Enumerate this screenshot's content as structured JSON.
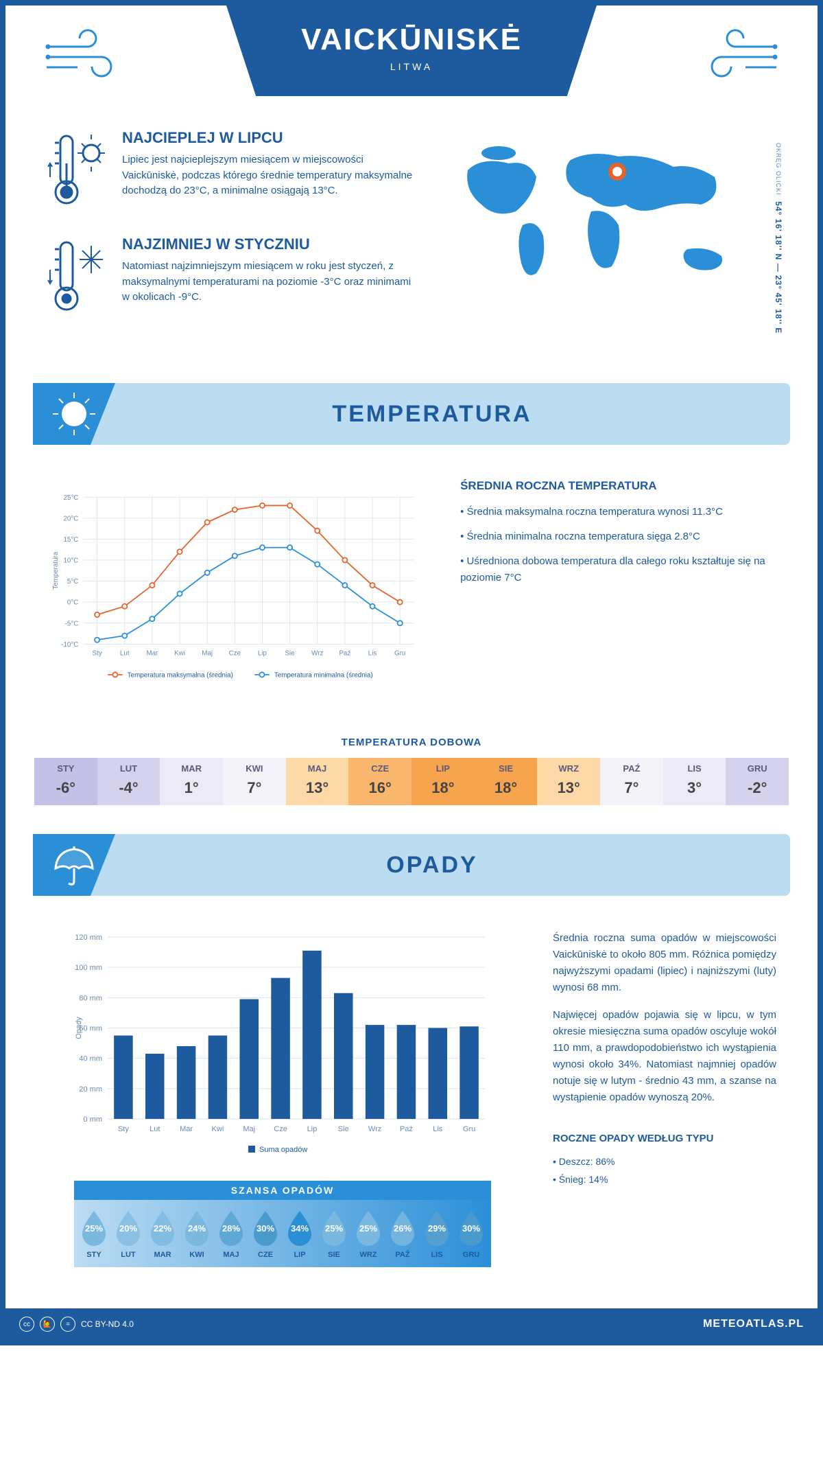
{
  "header": {
    "title": "VAICKŪNISKĖ",
    "subtitle": "LITWA"
  },
  "coords": {
    "main": "54° 16' 18'' N — 23° 45' 18'' E",
    "sub": "OKRĘG OLICKI"
  },
  "facts": {
    "hot": {
      "title": "NAJCIEPLEJ W LIPCU",
      "text": "Lipiec jest najcieplejszym miesiącem w miejscowości Vaickūniskė, podczas którego średnie temperatury maksymalne dochodzą do 23°C, a minimalne osiągają 13°C."
    },
    "cold": {
      "title": "NAJZIMNIEJ W STYCZNIU",
      "text": "Natomiast najzimniejszym miesiącem w roku jest styczeń, z maksymalnymi temperaturami na poziomie -3°C oraz minimami w okolicach -9°C."
    }
  },
  "sections": {
    "temp": "TEMPERATURA",
    "precip": "OPADY"
  },
  "months": [
    "Sty",
    "Lut",
    "Mar",
    "Kwi",
    "Maj",
    "Cze",
    "Lip",
    "Sie",
    "Wrz",
    "Paź",
    "Lis",
    "Gru"
  ],
  "months_upper": [
    "STY",
    "LUT",
    "MAR",
    "KWI",
    "MAJ",
    "CZE",
    "LIP",
    "SIE",
    "WRZ",
    "PAŹ",
    "LIS",
    "GRU"
  ],
  "temp_chart": {
    "type": "line",
    "ylim": [
      -10,
      25
    ],
    "ytick_step": 5,
    "y_unit": "°C",
    "ylabel": "Temperatura",
    "grid_color": "#d6e4f0",
    "max": {
      "values": [
        -3,
        -1,
        4,
        12,
        19,
        22,
        23,
        23,
        17,
        10,
        4,
        0
      ],
      "color": "#e8622c",
      "label": "Temperatura maksymalna (średnia)"
    },
    "min": {
      "values": [
        -9,
        -8,
        -4,
        2,
        7,
        11,
        13,
        13,
        9,
        4,
        -1,
        -5
      ],
      "color": "#2b8fd8",
      "label": "Temperatura minimalna (średnia)"
    }
  },
  "temp_side": {
    "title": "ŚREDNIA ROCZNA TEMPERATURA",
    "items": [
      "• Średnia maksymalna roczna temperatura wynosi 11.3°C",
      "• Średnia minimalna roczna temperatura sięga 2.8°C",
      "• Uśredniona dobowa temperatura dla całego roku kształtuje się na poziomie 7°C"
    ]
  },
  "dobowa": {
    "title": "TEMPERATURA DOBOWA",
    "values": [
      "-6°",
      "-4°",
      "1°",
      "7°",
      "13°",
      "16°",
      "18°",
      "18°",
      "13°",
      "7°",
      "3°",
      "-2°"
    ],
    "colors": [
      "#c4c1e8",
      "#d5d2ee",
      "#eceaf6",
      "#f5f3fa",
      "#fcd9a6",
      "#f9b66d",
      "#f6a44e",
      "#f6a44e",
      "#fcd9a6",
      "#f5f3fa",
      "#eceaf6",
      "#d5d2ee"
    ]
  },
  "precip_chart": {
    "type": "bar",
    "ylim": [
      0,
      120
    ],
    "ytick_step": 20,
    "y_unit": " mm",
    "ylabel": "Opady",
    "values": [
      55,
      43,
      48,
      55,
      79,
      93,
      111,
      83,
      62,
      62,
      60,
      61
    ],
    "color": "#1d5a9e",
    "legend": "Suma opadów"
  },
  "precip_side": {
    "p1": "Średnia roczna suma opadów w miejscowości Vaickūniskė to około 805 mm. Różnica pomiędzy najwyższymi opadami (lipiec) i najniższymi (luty) wynosi 68 mm.",
    "p2": "Najwięcej opadów pojawia się w lipcu, w tym okresie miesięczna suma opadów oscyluje wokół 110 mm, a prawdopodobieństwo ich wystąpienia wynosi około 34%. Natomiast najmniej opadów notuje się w lutym - średnio 43 mm, a szanse na wystąpienie opadów wynoszą 20%."
  },
  "szansa": {
    "title": "SZANSA OPADÓW",
    "pct": [
      "25%",
      "20%",
      "22%",
      "24%",
      "28%",
      "30%",
      "34%",
      "25%",
      "25%",
      "26%",
      "29%",
      "30%"
    ],
    "drop_colors": [
      "#7ab8e0",
      "#89c0e4",
      "#82bce2",
      "#7ab8e0",
      "#5ea8d6",
      "#4a9bcd",
      "#2b8fd8",
      "#7ab8e0",
      "#7ab8e0",
      "#72b4de",
      "#559fd0",
      "#4a9bcd"
    ]
  },
  "precip_types": {
    "title": "ROCZNE OPADY WEDŁUG TYPU",
    "items": [
      "• Deszcz: 86%",
      "• Śnieg: 14%"
    ]
  },
  "footer": {
    "license": "CC BY-ND 4.0",
    "brand": "METEOATLAS.PL"
  },
  "palette": {
    "primary": "#1d5a9e",
    "accent": "#2b8fd8",
    "light": "#bcdcf2",
    "orange": "#e8622c"
  }
}
